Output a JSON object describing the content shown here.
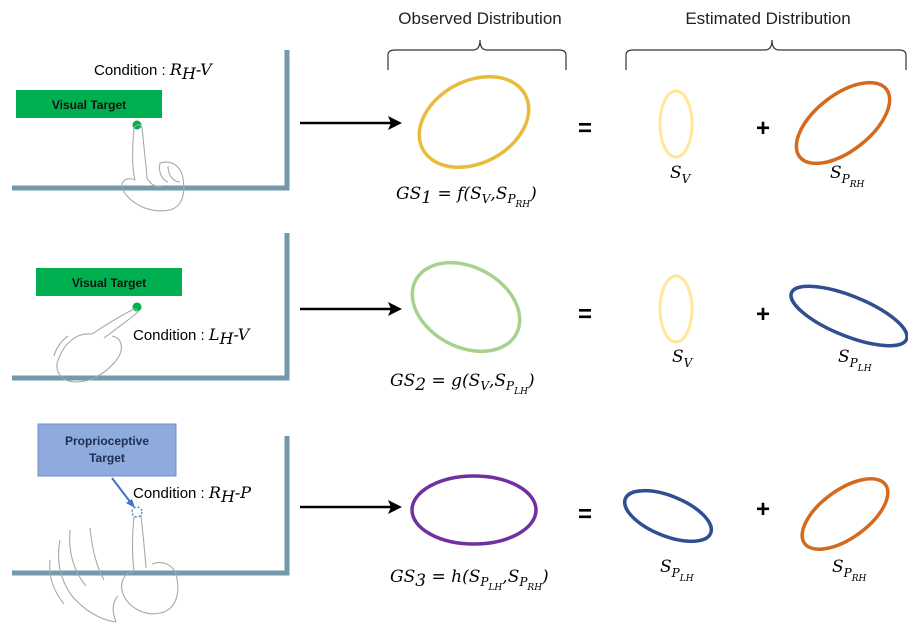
{
  "headers": {
    "observed": "Observed Distribution",
    "estimated": "Estimated Distribution"
  },
  "colors": {
    "frame": "#7399ae",
    "visual_target_bg": "#00b050",
    "proprio_target_bg": "#8faadc",
    "S_V": "#ffe699",
    "S_P_RH": "#d46a1e",
    "S_P_LH": "#2f4f8f",
    "GS1": "#e8bb3a",
    "GS2": "#a9d18e",
    "GS3": "#7030a0"
  },
  "rows": [
    {
      "condition_prefix": "Condition : ",
      "condition_main": "R",
      "condition_sub": "H",
      "condition_suffix": "-V",
      "target_label": "Visual Target",
      "gs_name": "GS",
      "gs_index": "1",
      "gs_func": "f",
      "terms": [
        "S_V",
        "S_P_RH"
      ]
    },
    {
      "condition_prefix": "Condition : ",
      "condition_main": "L",
      "condition_sub": "H",
      "condition_suffix": "-V",
      "target_label": "Visual Target",
      "gs_name": "GS",
      "gs_index": "2",
      "gs_func": "g",
      "terms": [
        "S_V",
        "S_P_LH"
      ]
    },
    {
      "condition_prefix": "Condition : ",
      "condition_main": "R",
      "condition_sub": "H",
      "condition_suffix": "-P",
      "target_label_line1": "Proprioceptive",
      "target_label_line2": "Target",
      "gs_name": "GS",
      "gs_index": "3",
      "gs_func": "h",
      "terms": [
        "S_P_LH",
        "S_P_RH"
      ]
    }
  ],
  "symbols": {
    "equals": "=",
    "plus": "+",
    "S": "S",
    "V": "V",
    "P": "P",
    "RH": "RH",
    "LH": "LH",
    "open_paren": "(",
    "comma": ",",
    "close_paren": ")",
    "assign": "="
  }
}
